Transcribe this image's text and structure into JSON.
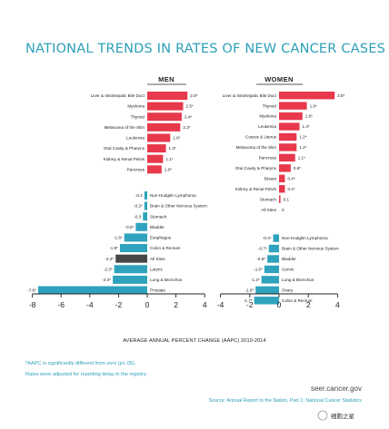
{
  "title": "NATIONAL TRENDS IN RATES OF  NEW CANCER CASES",
  "footnote_1": "*AAPC is significantly different from zero (p<.05).",
  "footnote_2": "Rates were adjusted for reporting delay in the registry.",
  "site_url": "seer.cancer.gov",
  "source": "Source: Annual Report to the Nation, Part 1: National Cancer Statistics",
  "watermark": "细胞之星",
  "colors": {
    "increase": "#e8384b",
    "decrease": "#2fa3bd",
    "all_sites_men": "#474747",
    "title": "#2da0b6"
  },
  "chart_data": [
    {
      "type": "bar",
      "orientation": "horizontal",
      "title": "MEN",
      "xlabel": "AVERAGE ANNUAL PERCENT CHANGE (AAPC) 2010-2014",
      "xlim": [
        -8,
        4
      ],
      "xticks": [
        -8,
        -6,
        -4,
        -2,
        0,
        2,
        4
      ],
      "bars": [
        {
          "label": "Liver & Intrahepatic Bile Duct",
          "value": 2.8,
          "value_label": "2.8*",
          "side": "increase"
        },
        {
          "label": "Myeloma",
          "value": 2.5,
          "value_label": "2.5*",
          "side": "increase"
        },
        {
          "label": "Thyroid",
          "value": 2.4,
          "value_label": "2.4*",
          "side": "increase"
        },
        {
          "label": "Melanoma of the Skin",
          "value": 2.3,
          "value_label": "2.3*",
          "side": "increase"
        },
        {
          "label": "Leukemia",
          "value": 1.6,
          "value_label": "1.6*",
          "side": "increase"
        },
        {
          "label": "Oral Cavity & Pharynx",
          "value": 1.3,
          "value_label": "1.3*",
          "side": "increase"
        },
        {
          "label": "Kidney & Renal Pelvis",
          "value": 1.1,
          "value_label": "1.1*",
          "side": "increase"
        },
        {
          "label": "Pancreas",
          "value": 1.0,
          "value_label": "1.0*",
          "side": "increase"
        },
        {
          "label": "Non-Hodgkin Lymphoma",
          "value": -0.2,
          "value_label": "-0.2",
          "side": "decrease"
        },
        {
          "label": "Brain & Other Nervous System",
          "value": -0.2,
          "value_label": "-0.2*",
          "side": "decrease"
        },
        {
          "label": "Stomach",
          "value": -0.3,
          "value_label": "-0.3",
          "side": "decrease"
        },
        {
          "label": "Bladder",
          "value": -0.8,
          "value_label": "-0.8*",
          "side": "decrease"
        },
        {
          "label": "Esophagus",
          "value": -1.6,
          "value_label": "-1.6*",
          "side": "decrease"
        },
        {
          "label": "Colon & Rectum",
          "value": -1.9,
          "value_label": "-1.9*",
          "side": "decrease"
        },
        {
          "label": "All Sites",
          "value": -2.2,
          "value_label": "-2.2*",
          "side": "all_sites"
        },
        {
          "label": "Larynx",
          "value": -2.3,
          "value_label": "-2.3*",
          "side": "decrease"
        },
        {
          "label": "Lung & Bronchus",
          "value": -2.4,
          "value_label": "-2.4*",
          "side": "decrease"
        },
        {
          "label": "Prostate",
          "value": -7.6,
          "value_label": "-7.6*",
          "side": "decrease"
        }
      ]
    },
    {
      "type": "bar",
      "orientation": "horizontal",
      "title": "WOMEN",
      "xlim": [
        -4,
        4
      ],
      "xticks": [
        -4,
        -2,
        0,
        2,
        4
      ],
      "bars": [
        {
          "label": "Liver & Intrahepatic Bile Duct",
          "value": 3.8,
          "value_label": "3.8*",
          "side": "increase"
        },
        {
          "label": "Thyroid",
          "value": 1.9,
          "value_label": "1.9*",
          "side": "increase"
        },
        {
          "label": "Myeloma",
          "value": 1.6,
          "value_label": "1.6*",
          "side": "increase"
        },
        {
          "label": "Leukemia",
          "value": 1.4,
          "value_label": "1.4*",
          "side": "increase"
        },
        {
          "label": "Corpus & Uterus",
          "value": 1.2,
          "value_label": "1.2*",
          "side": "increase"
        },
        {
          "label": "Melanoma of the Skin",
          "value": 1.2,
          "value_label": "1.2*",
          "side": "increase"
        },
        {
          "label": "Pancreas",
          "value": 1.1,
          "value_label": "1.1*",
          "side": "increase"
        },
        {
          "label": "Oral Cavity & Pharynx",
          "value": 0.8,
          "value_label": "0.8*",
          "side": "increase"
        },
        {
          "label": "Breast",
          "value": 0.4,
          "value_label": "0.4*",
          "side": "increase"
        },
        {
          "label": "Kidney & Renal Pelvis",
          "value": 0.4,
          "value_label": "0.4*",
          "side": "increase"
        },
        {
          "label": "Stomach",
          "value": 0.1,
          "value_label": "0.1",
          "side": "increase"
        },
        {
          "label": "All Sites",
          "value": 0,
          "value_label": "0",
          "side": "all_sites"
        },
        {
          "label": "Non-Hodgkin Lymphoma",
          "value": -0.4,
          "value_label": "-0.4*",
          "side": "decrease"
        },
        {
          "label": "Brain & Other Nervous System",
          "value": -0.7,
          "value_label": "-0.7*",
          "side": "decrease"
        },
        {
          "label": "Bladder",
          "value": -0.8,
          "value_label": "-0.8*",
          "side": "decrease"
        },
        {
          "label": "Cervix",
          "value": -1.0,
          "value_label": "-1.0*",
          "side": "decrease"
        },
        {
          "label": "Lung & Bronchus",
          "value": -1.2,
          "value_label": "-1.2*",
          "side": "decrease"
        },
        {
          "label": "Ovary",
          "value": -1.6,
          "value_label": "-1.6*",
          "side": "decrease"
        },
        {
          "label": "Colon & Rectum",
          "value": -1.7,
          "value_label": "-1.7*",
          "side": "decrease"
        }
      ]
    }
  ]
}
